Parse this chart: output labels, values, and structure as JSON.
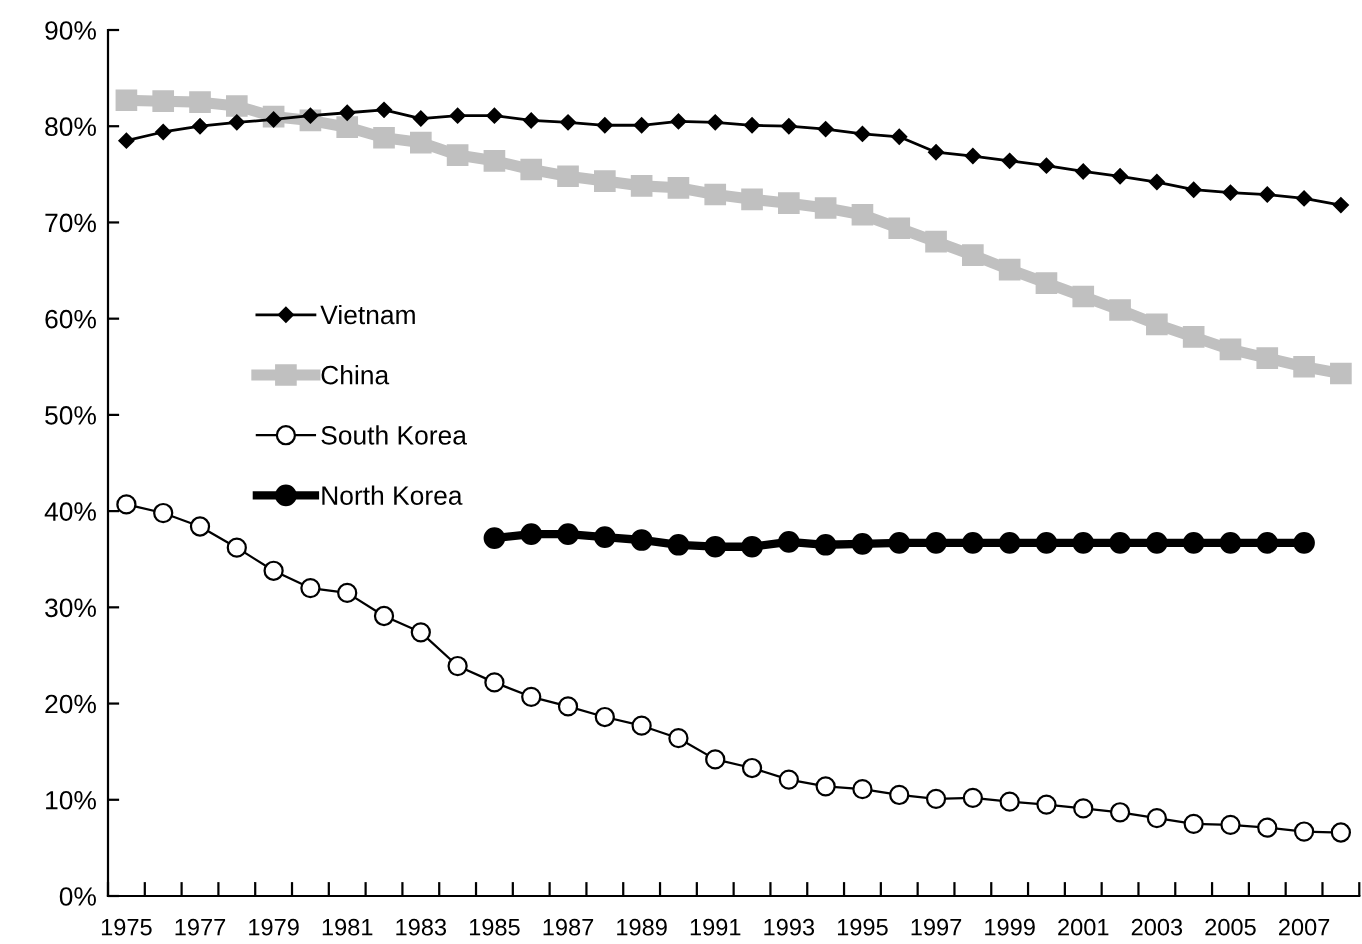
{
  "chart_data": {
    "type": "line",
    "categories": [
      "1975",
      null,
      "1977",
      null,
      "1979",
      null,
      "1981",
      null,
      "1983",
      null,
      "1985",
      null,
      "1987",
      null,
      "1989",
      null,
      "1991",
      null,
      "1993",
      null,
      "1995",
      null,
      "1997",
      null,
      "1999",
      null,
      "2001",
      null,
      "2003",
      null,
      "2005",
      null,
      "2007",
      null
    ],
    "series": [
      {
        "name": "Vietnam",
        "color": "#000000",
        "marker": "diamond",
        "values": [
          78.5,
          79.4,
          80.0,
          80.4,
          80.7,
          81.1,
          81.4,
          81.7,
          80.8,
          81.1,
          81.1,
          80.6,
          80.4,
          80.1,
          80.1,
          80.5,
          80.4,
          80.1,
          80.0,
          79.7,
          79.2,
          78.9,
          77.3,
          76.9,
          76.4,
          75.9,
          75.3,
          74.8,
          74.2,
          73.4,
          73.1,
          72.9,
          72.5,
          71.8
        ]
      },
      {
        "name": "China",
        "color": "#c0c0c0",
        "marker": "square",
        "values": [
          82.7,
          82.6,
          82.5,
          82.1,
          81.0,
          80.6,
          79.9,
          78.8,
          78.3,
          77.0,
          76.4,
          75.5,
          74.8,
          74.3,
          73.8,
          73.6,
          72.9,
          72.4,
          72.0,
          71.5,
          70.8,
          69.4,
          68.0,
          66.6,
          65.1,
          63.7,
          62.3,
          60.9,
          59.4,
          58.1,
          56.8,
          55.9,
          55.0,
          54.3
        ]
      },
      {
        "name": "South Korea",
        "color": "#000000",
        "marker": "circle",
        "values": [
          40.7,
          39.8,
          38.4,
          36.2,
          33.8,
          32.0,
          31.5,
          29.1,
          27.4,
          23.9,
          22.2,
          20.7,
          19.7,
          18.6,
          17.7,
          16.4,
          14.2,
          13.3,
          12.1,
          11.4,
          11.1,
          10.5,
          10.1,
          10.2,
          9.8,
          9.5,
          9.1,
          8.7,
          8.1,
          7.5,
          7.4,
          7.1,
          6.7,
          6.6
        ]
      },
      {
        "name": "North Korea",
        "color": "#000000",
        "marker": "circle",
        "values": [
          null,
          null,
          null,
          null,
          null,
          null,
          null,
          null,
          null,
          null,
          37.2,
          37.6,
          37.6,
          37.3,
          37.0,
          36.5,
          36.3,
          36.3,
          36.8,
          36.5,
          36.6,
          36.7,
          36.7,
          36.7,
          36.7,
          36.7,
          36.7,
          36.7,
          36.7,
          36.7,
          36.7,
          36.7,
          36.7,
          null
        ]
      }
    ],
    "ylim": [
      0,
      90
    ],
    "yticks": [
      {
        "value": 0,
        "label": "0%"
      },
      {
        "value": 10,
        "label": "10%"
      },
      {
        "value": 20,
        "label": "20%"
      },
      {
        "value": 30,
        "label": "30%"
      },
      {
        "value": 40,
        "label": "40%"
      },
      {
        "value": 50,
        "label": "50%"
      },
      {
        "value": 60,
        "label": "60%"
      },
      {
        "value": 70,
        "label": "70%"
      },
      {
        "value": 80,
        "label": "80%"
      },
      {
        "value": 90,
        "label": "90%"
      }
    ],
    "grid": false,
    "legend": "left"
  }
}
